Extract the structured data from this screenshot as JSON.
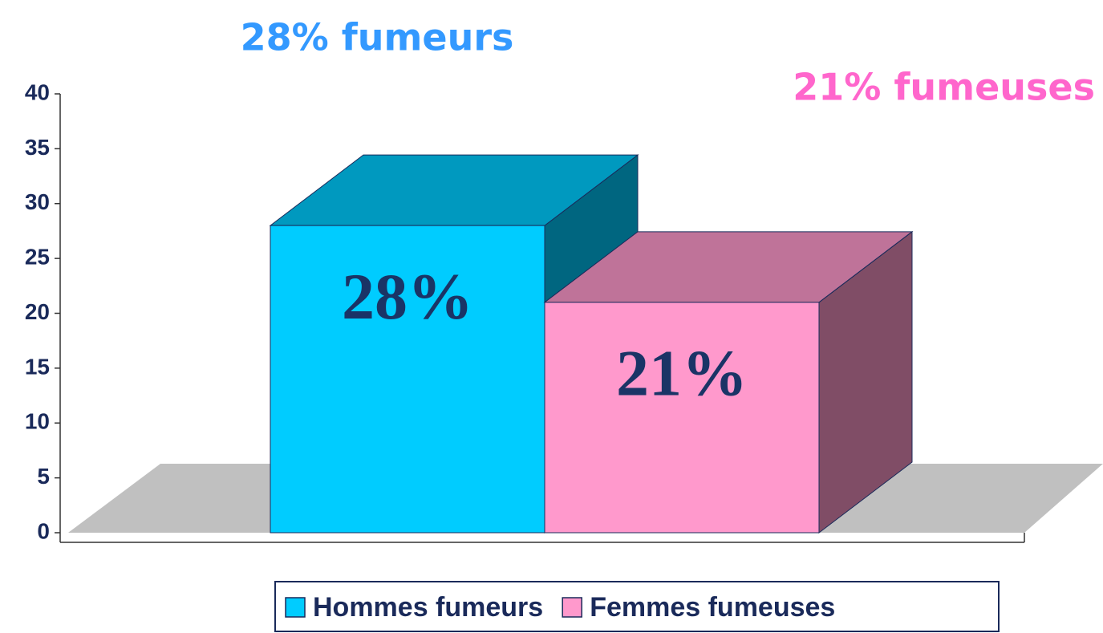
{
  "chart_data": {
    "type": "bar3d",
    "annotations": [
      {
        "text": "28% fumeurs",
        "color": "#3399ff"
      },
      {
        "text": "21% fumeuses",
        "color": "#ff66cc"
      }
    ],
    "series": [
      {
        "name": "Hommes fumeurs",
        "color": "#00ccff",
        "top_color": "#0099bf",
        "side_color": "#006680",
        "values": [
          28
        ],
        "value_labels": [
          "28%"
        ]
      },
      {
        "name": "Femmes fumeuses",
        "color": "#ff99cc",
        "top_color": "#bf7399",
        "side_color": "#804d66",
        "values": [
          21
        ],
        "value_labels": [
          "21%"
        ]
      }
    ],
    "ylim": [
      0,
      40
    ],
    "yticks": [
      0,
      5,
      10,
      15,
      20,
      25,
      30,
      35,
      40
    ],
    "legend": "bottom"
  }
}
